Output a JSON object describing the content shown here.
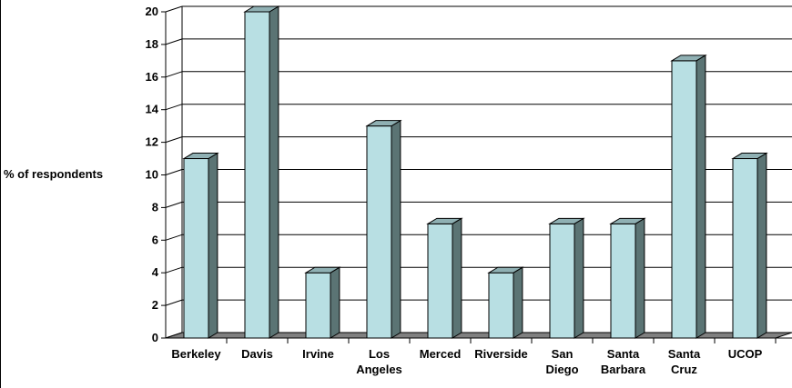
{
  "chart_data": {
    "type": "bar",
    "categories": [
      "Berkeley",
      "Davis",
      "Irvine",
      "Los Angeles",
      "Merced",
      "Riverside",
      "San Diego",
      "Santa Barbara",
      "Santa Cruz",
      "UCOP"
    ],
    "values": [
      11,
      20,
      4,
      13,
      7,
      4,
      7,
      7,
      17,
      11
    ],
    "ylabel": "% of respondents",
    "ylim": [
      0,
      20
    ],
    "yticks": [
      0,
      2,
      4,
      6,
      8,
      10,
      12,
      14,
      16,
      18,
      20
    ],
    "grid": true,
    "style": "3d-column",
    "colors": {
      "bar_front": "#b8dfe3",
      "bar_side": "#5b7474",
      "bar_top": "#8fb0b3",
      "floor": "#808080"
    }
  }
}
